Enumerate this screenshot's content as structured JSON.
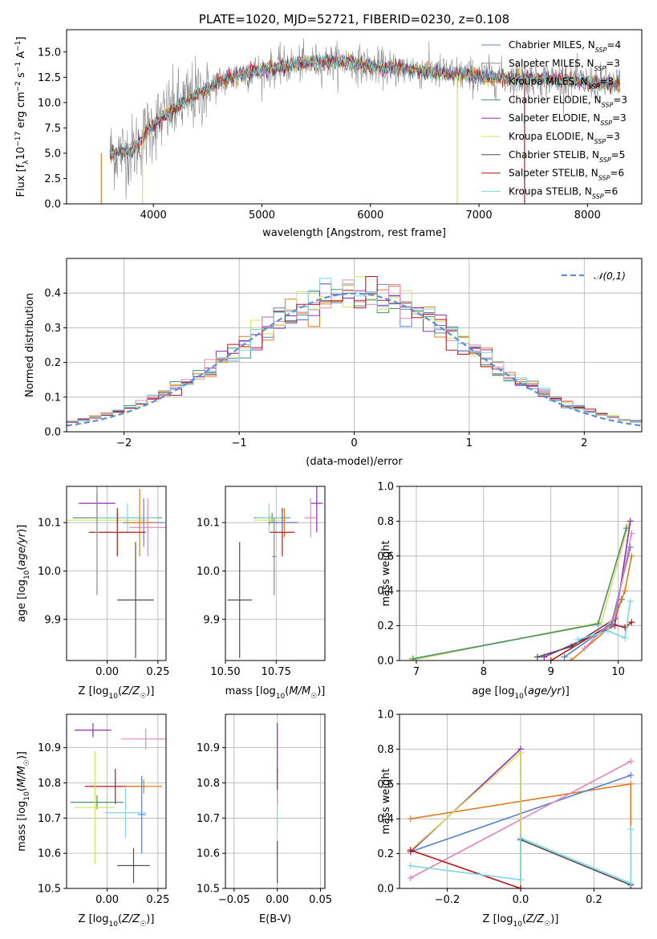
{
  "chart_data": [
    {
      "id": "spectrum",
      "type": "line",
      "title": "PLATE=1020, MJD=52721, FIBERID=0230, z=0.108",
      "xlabel": "wavelength [Angstrom, rest frame]",
      "ylabel": "Flux [f_λ 10^-17 erg cm^-2 s^-1 A^-1]",
      "xlim": [
        3200,
        8500
      ],
      "ylim": [
        0,
        17.2
      ],
      "xticks": [
        4000,
        5000,
        6000,
        7000,
        8000
      ],
      "yticks": [
        0,
        2.5,
        5.0,
        7.5,
        10.0,
        12.5,
        15.0
      ],
      "grid": false,
      "legend_position": "top-right",
      "series": [
        {
          "name": "Chabrier MILES, N_SSP=4",
          "color": "#5b7fcf"
        },
        {
          "name": "Salpeter MILES, N_SSP=3",
          "color": "#8b8b8b"
        },
        {
          "name": "Kroupa MILES, N_SSP=3",
          "color": "#e07b20"
        },
        {
          "name": "Chabrier ELODIE, N_SSP=3",
          "color": "#4c8f6e"
        },
        {
          "name": "Salpeter ELODIE, N_SSP=3",
          "color": "#8e2cb0"
        },
        {
          "name": "Kroupa ELODIE, N_SSP=3",
          "color": "#d8e060"
        },
        {
          "name": "Chabrier STELIB, N_SSP=5",
          "color": "#505050"
        },
        {
          "name": "Salpeter STELIB, N_SSP=6",
          "color": "#b31818"
        },
        {
          "name": "Kroupa STELIB, N_SSP=6",
          "color": "#7fd7e0"
        }
      ],
      "continuum": {
        "x": [
          3600,
          3800,
          4000,
          4200,
          4400,
          4600,
          4800,
          5000,
          5200,
          5400,
          5600,
          5800,
          6000,
          6200,
          6400,
          6600,
          6800,
          7000,
          7200,
          7400,
          7600,
          7800,
          8000,
          8200,
          8300
        ],
        "y": [
          5.0,
          5.2,
          7.8,
          9.5,
          10.8,
          12.0,
          12.8,
          13.2,
          13.6,
          13.9,
          14.0,
          14.0,
          13.6,
          13.4,
          13.3,
          13.0,
          12.8,
          12.6,
          12.5,
          12.4,
          12.3,
          12.2,
          12.0,
          11.8,
          11.8
        ]
      },
      "spikes": [
        {
          "x": 3520,
          "y": 0
        },
        {
          "x": 3900,
          "y": 0
        },
        {
          "x": 6800,
          "y": 0
        },
        {
          "x": 7420,
          "y": 0
        }
      ]
    },
    {
      "id": "residuals",
      "type": "histogram",
      "xlabel": "(data-model)/error",
      "ylabel": "Normed distribution",
      "xlim": [
        -2.5,
        2.5
      ],
      "ylim": [
        0,
        0.5
      ],
      "xticks": [
        -2,
        -1,
        0,
        1,
        2
      ],
      "yticks": [
        0.0,
        0.1,
        0.2,
        0.3,
        0.4
      ],
      "grid": true,
      "legend": [
        {
          "name": "𝒩(0,1)",
          "color": "#5b8fd6",
          "style": "dashed"
        }
      ],
      "bin_width": 0.1,
      "series_colors": [
        "#5b7fcf",
        "#e07b20",
        "#4c8f6e",
        "#8e2cb0",
        "#d8e060",
        "#e087b7",
        "#b31818",
        "#7fd7e0"
      ]
    },
    {
      "id": "age-vs-Z",
      "type": "scatter",
      "xlabel": "Z [log10(Z/Z☉)]",
      "ylabel": "age [log10(age/yr)]",
      "xlim": [
        -0.2,
        0.29
      ],
      "ylim": [
        9.815,
        10.175
      ],
      "xticks": [
        0.0,
        0.25
      ],
      "yticks": [
        9.9,
        10.0,
        10.1
      ],
      "grid": true,
      "points": [
        {
          "x": -0.05,
          "y": 10.14,
          "xerr": 0.09,
          "yerr": 0.02,
          "color": "#8e2cb0"
        },
        {
          "x": 0.05,
          "y": 10.11,
          "xerr": 0.22,
          "yerr": 0.01,
          "color": "#4c8f6e"
        },
        {
          "x": 0.0,
          "y": 10.105,
          "xerr": 0.2,
          "yerr": 0.01,
          "color": "#d8e060"
        },
        {
          "x": 0.1,
          "y": 10.11,
          "xerr": 0.15,
          "yerr": 0.03,
          "color": "#7fd7e0"
        },
        {
          "x": 0.18,
          "y": 10.1,
          "xerr": 0.1,
          "yerr": 0.05,
          "color": "#5b7fcf"
        },
        {
          "x": 0.2,
          "y": 10.09,
          "xerr": 0.09,
          "yerr": 0.06,
          "color": "#e087b7"
        },
        {
          "x": 0.16,
          "y": 10.1,
          "xerr": 0.08,
          "yerr": 0.07,
          "color": "#e07b20"
        },
        {
          "x": 0.05,
          "y": 10.08,
          "xerr": 0.14,
          "yerr": 0.05,
          "color": "#b31818"
        },
        {
          "x": -0.05,
          "y": 10.08,
          "xerr": 0.01,
          "yerr": 0.13,
          "color": "#8b8b8b"
        },
        {
          "x": 0.14,
          "y": 9.94,
          "xerr": 0.09,
          "yerr": 0.12,
          "color": "#505050"
        }
      ]
    },
    {
      "id": "age-vs-mass",
      "type": "scatter",
      "xlabel": "mass [log10(M/M☉)]",
      "xlim": [
        10.5,
        10.99
      ],
      "ylim": [
        9.815,
        10.175
      ],
      "xticks": [
        10.5,
        10.75
      ],
      "yticks": [
        9.9,
        10.0,
        10.1
      ],
      "grid": true,
      "points": [
        {
          "x": 10.95,
          "y": 10.14,
          "xerr": 0.03,
          "yerr": 0.06,
          "color": "#8e2cb0"
        },
        {
          "x": 10.73,
          "y": 10.11,
          "xerr": 0.09,
          "yerr": 0.01,
          "color": "#4c8f6e"
        },
        {
          "x": 10.72,
          "y": 10.105,
          "xerr": 0.08,
          "yerr": 0.01,
          "color": "#d8e060"
        },
        {
          "x": 10.715,
          "y": 10.11,
          "xerr": 0.06,
          "yerr": 0.03,
          "color": "#7fd7e0"
        },
        {
          "x": 10.79,
          "y": 10.1,
          "xerr": 0.07,
          "yerr": 0.03,
          "color": "#e07b20"
        },
        {
          "x": 10.92,
          "y": 10.11,
          "xerr": 0.03,
          "yerr": 0.04,
          "color": "#e087b7"
        },
        {
          "x": 10.78,
          "y": 10.08,
          "xerr": 0.06,
          "yerr": 0.05,
          "color": "#b31818"
        },
        {
          "x": 10.78,
          "y": 10.1,
          "xerr": 0.07,
          "yerr": 0.02,
          "color": "#5b7fcf"
        },
        {
          "x": 10.74,
          "y": 10.03,
          "xerr": 0.01,
          "yerr": 0.08,
          "color": "#8b8b8b"
        },
        {
          "x": 10.57,
          "y": 9.94,
          "xerr": 0.06,
          "yerr": 0.12,
          "color": "#505050"
        }
      ]
    },
    {
      "id": "weight-vs-age",
      "type": "line",
      "xlabel": "age [log10(age/yr)]",
      "ylabel": "mass weight",
      "xlim": [
        6.75,
        10.35
      ],
      "ylim": [
        0,
        1.0
      ],
      "xticks": [
        7,
        8,
        9,
        10
      ],
      "yticks": [
        0.0,
        0.2,
        0.4,
        0.6,
        0.8,
        1.0
      ],
      "grid": true,
      "series": [
        {
          "color": "#d8e060",
          "x": [
            6.9,
            9.75,
            10.15
          ],
          "y": [
            0.0,
            0.22,
            0.78
          ]
        },
        {
          "color": "#4c8f6e",
          "x": [
            6.95,
            9.7,
            10.12
          ],
          "y": [
            0.01,
            0.21,
            0.76
          ]
        },
        {
          "color": "#8e2cb0",
          "x": [
            8.9,
            9.95,
            10.18
          ],
          "y": [
            0.02,
            0.2,
            0.8
          ]
        },
        {
          "color": "#505050",
          "x": [
            8.8,
            9.3,
            9.95,
            10.05
          ],
          "y": [
            0.02,
            0.08,
            0.24,
            0.35
          ]
        },
        {
          "color": "#b31818",
          "x": [
            9.0,
            9.9,
            10.1,
            10.2
          ],
          "y": [
            0.0,
            0.21,
            0.19,
            0.22
          ]
        },
        {
          "color": "#e07b20",
          "x": [
            9.3,
            9.9,
            10.1,
            10.2
          ],
          "y": [
            0.0,
            0.2,
            0.4,
            0.6
          ]
        },
        {
          "color": "#5b7fcf",
          "x": [
            9.2,
            9.9,
            10.18
          ],
          "y": [
            0.02,
            0.21,
            0.65
          ]
        },
        {
          "color": "#e087b7",
          "x": [
            9.5,
            9.95,
            10.2
          ],
          "y": [
            0.07,
            0.25,
            0.73
          ]
        },
        {
          "color": "#7fd7e0",
          "x": [
            9.4,
            9.85,
            10.1,
            10.18
          ],
          "y": [
            0.12,
            0.17,
            0.13,
            0.34
          ]
        }
      ]
    },
    {
      "id": "mass-vs-Z",
      "type": "scatter",
      "xlabel": "Z [log10(Z/Z☉)]",
      "ylabel": "mass [log10(M/M☉)]",
      "xlim": [
        -0.2,
        0.29
      ],
      "ylim": [
        10.5,
        10.995
      ],
      "xticks": [
        0.0,
        0.25
      ],
      "yticks": [
        10.5,
        10.6,
        10.7,
        10.8,
        10.9
      ],
      "grid": true,
      "points": [
        {
          "x": -0.07,
          "y": 10.95,
          "xerr": 0.09,
          "yerr": 0.02,
          "color": "#8e2cb0"
        },
        {
          "x": 0.19,
          "y": 10.925,
          "xerr": 0.12,
          "yerr": 0.03,
          "color": "#e087b7"
        },
        {
          "x": 0.04,
          "y": 10.79,
          "xerr": 0.15,
          "yerr": 0.05,
          "color": "#b31818"
        },
        {
          "x": 0.18,
          "y": 10.79,
          "xerr": 0.09,
          "yerr": 0.02,
          "color": "#e07b20"
        },
        {
          "x": 0.17,
          "y": 10.71,
          "xerr": 0.02,
          "yerr": 0.11,
          "color": "#5b7fcf"
        },
        {
          "x": 0.09,
          "y": 10.715,
          "xerr": 0.1,
          "yerr": 0.07,
          "color": "#7fd7e0"
        },
        {
          "x": -0.05,
          "y": 10.745,
          "xerr": 0.13,
          "yerr": 0.02,
          "color": "#4c8f6e"
        },
        {
          "x": -0.06,
          "y": 10.73,
          "xerr": 0.1,
          "yerr": 0.16,
          "color": "#d8e060"
        },
        {
          "x": 0.13,
          "y": 10.565,
          "xerr": 0.08,
          "yerr": 0.05,
          "color": "#505050"
        }
      ]
    },
    {
      "id": "mass-vs-ebv",
      "type": "scatter",
      "xlabel": "E(B-V)",
      "xlim": [
        -0.06,
        0.055
      ],
      "ylim": [
        10.5,
        10.995
      ],
      "xticks": [
        -0.05,
        0.0,
        0.05
      ],
      "yticks": [
        10.5,
        10.6,
        10.7,
        10.8,
        10.9
      ],
      "grid": true,
      "points": [
        {
          "x": 0.0,
          "y": 10.9,
          "xerr": 0.0,
          "yerr": 0.07,
          "color": "#8e2cb0"
        },
        {
          "x": 0.0,
          "y": 10.79,
          "xerr": 0.0,
          "yerr": 0.05,
          "color": "#b31818"
        },
        {
          "x": 0.0,
          "y": 10.72,
          "xerr": 0.0,
          "yerr": 0.06,
          "color": "#7fd7e0"
        },
        {
          "x": 0.0,
          "y": 10.575,
          "xerr": 0.0,
          "yerr": 0.06,
          "color": "#505050"
        }
      ]
    },
    {
      "id": "weight-vs-Z",
      "type": "line",
      "xlabel": "Z [log10(Z/Z☉)]",
      "ylabel": "mass weight",
      "xlim": [
        -0.33,
        0.33
      ],
      "ylim": [
        0,
        1.0
      ],
      "xticks": [
        -0.2,
        0.0,
        0.2
      ],
      "yticks": [
        0.0,
        0.2,
        0.4,
        0.6,
        0.8,
        1.0
      ],
      "grid": true,
      "series": [
        {
          "color": "#e07b20",
          "x": [
            -0.3,
            0.3,
            0.3
          ],
          "y": [
            0.4,
            0.6,
            0.0
          ]
        },
        {
          "color": "#5b7fcf",
          "x": [
            -0.3,
            0.3
          ],
          "y": [
            0.21,
            0.65
          ]
        },
        {
          "color": "#e087b7",
          "x": [
            -0.3,
            0.3
          ],
          "y": [
            0.06,
            0.73
          ]
        },
        {
          "color": "#8e2cb0",
          "x": [
            -0.3,
            0.0,
            0.0
          ],
          "y": [
            0.21,
            0.8,
            0.0
          ]
        },
        {
          "color": "#d8e060",
          "x": [
            -0.3,
            0.0,
            0.0
          ],
          "y": [
            0.22,
            0.78,
            0.0
          ]
        },
        {
          "color": "#b31818",
          "x": [
            -0.3,
            0.0
          ],
          "y": [
            0.22,
            0.0
          ]
        },
        {
          "color": "#505050",
          "x": [
            0.0,
            0.3
          ],
          "y": [
            0.28,
            0.02
          ]
        },
        {
          "color": "#7fd7e0",
          "x": [
            -0.3,
            0.0,
            0.0,
            0.3,
            0.3
          ],
          "y": [
            0.13,
            0.05,
            0.29,
            0.03,
            0.34
          ]
        }
      ]
    }
  ]
}
